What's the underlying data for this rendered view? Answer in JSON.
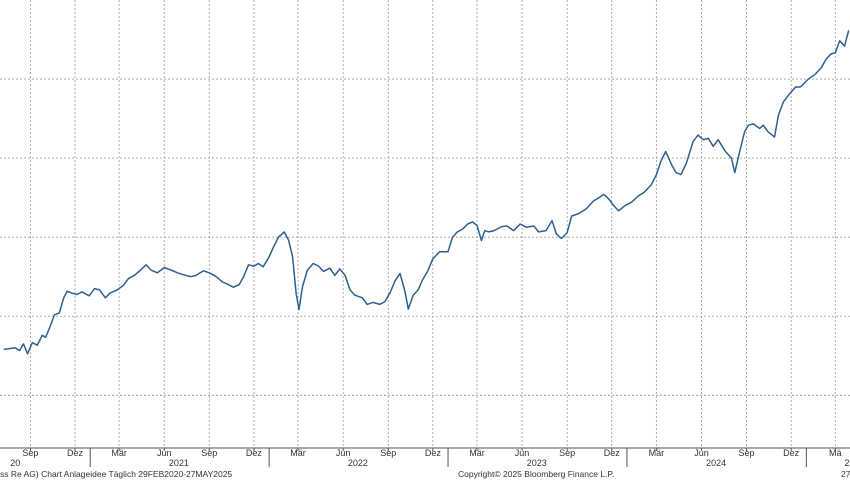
{
  "chart_data": {
    "type": "line",
    "title": "",
    "xlabel": "",
    "ylabel": "",
    "grid": true,
    "legend": "none",
    "line_color": "#2f5f8f",
    "grid_color": "#9a9a9a",
    "x_range": [
      "2020-07-01",
      "2025-03-31"
    ],
    "month_ticks": [
      {
        "date": "2020-09-01",
        "label": "Sep"
      },
      {
        "date": "2020-12-01",
        "label": "Dez"
      },
      {
        "date": "2021-03-01",
        "label": "Mär"
      },
      {
        "date": "2021-06-01",
        "label": "Jun"
      },
      {
        "date": "2021-09-01",
        "label": "Sep"
      },
      {
        "date": "2021-12-01",
        "label": "Dez"
      },
      {
        "date": "2022-03-01",
        "label": "Mär"
      },
      {
        "date": "2022-06-01",
        "label": "Jun"
      },
      {
        "date": "2022-09-01",
        "label": "Sep"
      },
      {
        "date": "2022-12-01",
        "label": "Dez"
      },
      {
        "date": "2023-03-01",
        "label": "Mär"
      },
      {
        "date": "2023-06-01",
        "label": "Jun"
      },
      {
        "date": "2023-09-01",
        "label": "Sep"
      },
      {
        "date": "2023-12-01",
        "label": "Dez"
      },
      {
        "date": "2024-03-01",
        "label": "Mär"
      },
      {
        "date": "2024-06-01",
        "label": "Jun"
      },
      {
        "date": "2024-09-01",
        "label": "Sep"
      },
      {
        "date": "2024-12-01",
        "label": "Dez"
      },
      {
        "date": "2025-03-01",
        "label": "Mä"
      }
    ],
    "year_labels": [
      {
        "date": "2020-08-01",
        "label": "20"
      },
      {
        "date": "2021-07-01",
        "label": "2021"
      },
      {
        "date": "2022-07-01",
        "label": "2022"
      },
      {
        "date": "2023-07-01",
        "label": "2023"
      },
      {
        "date": "2024-07-01",
        "label": "2024"
      },
      {
        "date": "2025-03-25",
        "label": "2"
      }
    ],
    "year_boundaries": [
      "2021-01-01",
      "2022-01-01",
      "2023-01-01",
      "2024-01-01",
      "2025-01-01"
    ],
    "series": [
      {
        "points": [
          [
            "2020-07-10",
            350
          ],
          [
            "2020-08-01",
            352
          ],
          [
            "2020-08-10",
            348
          ],
          [
            "2020-08-18",
            358
          ],
          [
            "2020-08-26",
            343
          ],
          [
            "2020-09-05",
            360
          ],
          [
            "2020-09-15",
            356
          ],
          [
            "2020-09-25",
            371
          ],
          [
            "2020-10-02",
            368
          ],
          [
            "2020-10-10",
            382
          ],
          [
            "2020-10-20",
            402
          ],
          [
            "2020-10-30",
            405
          ],
          [
            "2020-11-08",
            428
          ],
          [
            "2020-11-15",
            438
          ],
          [
            "2020-11-25",
            435
          ],
          [
            "2020-12-05",
            433
          ],
          [
            "2020-12-15",
            437
          ],
          [
            "2020-12-30",
            431
          ],
          [
            "2021-01-10",
            442
          ],
          [
            "2021-01-20",
            440
          ],
          [
            "2021-02-01",
            428
          ],
          [
            "2021-02-10",
            435
          ],
          [
            "2021-02-25",
            440
          ],
          [
            "2021-03-10",
            447
          ],
          [
            "2021-03-20",
            457
          ],
          [
            "2021-04-01",
            462
          ],
          [
            "2021-04-15",
            471
          ],
          [
            "2021-04-25",
            478
          ],
          [
            "2021-05-05",
            470
          ],
          [
            "2021-05-18",
            466
          ],
          [
            "2021-06-01",
            474
          ],
          [
            "2021-06-15",
            470
          ],
          [
            "2021-06-28",
            466
          ],
          [
            "2021-07-10",
            463
          ],
          [
            "2021-07-25",
            460
          ],
          [
            "2021-08-05",
            462
          ],
          [
            "2021-08-20",
            469
          ],
          [
            "2021-09-01",
            466
          ],
          [
            "2021-09-15",
            460
          ],
          [
            "2021-09-28",
            452
          ],
          [
            "2021-10-10",
            448
          ],
          [
            "2021-10-20",
            444
          ],
          [
            "2021-11-01",
            448
          ],
          [
            "2021-11-10",
            460
          ],
          [
            "2021-11-20",
            478
          ],
          [
            "2021-12-01",
            476
          ],
          [
            "2021-12-10",
            480
          ],
          [
            "2021-12-20",
            475
          ],
          [
            "2022-01-01",
            490
          ],
          [
            "2022-01-10",
            505
          ],
          [
            "2022-01-20",
            520
          ],
          [
            "2022-02-01",
            528
          ],
          [
            "2022-02-10",
            515
          ],
          [
            "2022-02-18",
            490
          ],
          [
            "2022-02-25",
            435
          ],
          [
            "2022-03-03",
            410
          ],
          [
            "2022-03-10",
            445
          ],
          [
            "2022-03-20",
            470
          ],
          [
            "2022-04-01",
            480
          ],
          [
            "2022-04-12",
            476
          ],
          [
            "2022-04-22",
            468
          ],
          [
            "2022-05-05",
            473
          ],
          [
            "2022-05-15",
            462
          ],
          [
            "2022-05-25",
            472
          ],
          [
            "2022-06-05",
            462
          ],
          [
            "2022-06-15",
            440
          ],
          [
            "2022-06-25",
            432
          ],
          [
            "2022-07-10",
            428
          ],
          [
            "2022-07-20",
            418
          ],
          [
            "2022-08-01",
            421
          ],
          [
            "2022-08-15",
            418
          ],
          [
            "2022-08-25",
            422
          ],
          [
            "2022-09-05",
            436
          ],
          [
            "2022-09-15",
            454
          ],
          [
            "2022-09-25",
            465
          ],
          [
            "2022-10-05",
            438
          ],
          [
            "2022-10-12",
            411
          ],
          [
            "2022-10-22",
            432
          ],
          [
            "2022-11-01",
            440
          ],
          [
            "2022-11-10",
            455
          ],
          [
            "2022-11-20",
            468
          ],
          [
            "2022-12-01",
            487
          ],
          [
            "2022-12-15",
            498
          ],
          [
            "2023-01-01",
            498
          ],
          [
            "2023-01-10",
            520
          ],
          [
            "2023-01-20",
            528
          ],
          [
            "2023-02-01",
            533
          ],
          [
            "2023-02-10",
            540
          ],
          [
            "2023-02-20",
            543
          ],
          [
            "2023-03-01",
            538
          ],
          [
            "2023-03-10",
            515
          ],
          [
            "2023-03-17",
            530
          ],
          [
            "2023-03-25",
            528
          ],
          [
            "2023-04-05",
            530
          ],
          [
            "2023-04-20",
            536
          ],
          [
            "2023-05-01",
            537
          ],
          [
            "2023-05-15",
            530
          ],
          [
            "2023-05-28",
            540
          ],
          [
            "2023-06-10",
            535
          ],
          [
            "2023-06-25",
            537
          ],
          [
            "2023-07-05",
            528
          ],
          [
            "2023-07-20",
            530
          ],
          [
            "2023-08-01",
            545
          ],
          [
            "2023-08-10",
            525
          ],
          [
            "2023-08-20",
            518
          ],
          [
            "2023-09-01",
            527
          ],
          [
            "2023-09-10",
            552
          ],
          [
            "2023-09-25",
            556
          ],
          [
            "2023-10-10",
            563
          ],
          [
            "2023-10-25",
            575
          ],
          [
            "2023-11-05",
            580
          ],
          [
            "2023-11-15",
            585
          ],
          [
            "2023-11-25",
            578
          ],
          [
            "2023-12-05",
            568
          ],
          [
            "2023-12-15",
            560
          ],
          [
            "2023-12-28",
            568
          ],
          [
            "2024-01-10",
            573
          ],
          [
            "2024-01-25",
            583
          ],
          [
            "2024-02-05",
            588
          ],
          [
            "2024-02-20",
            600
          ],
          [
            "2024-03-01",
            615
          ],
          [
            "2024-03-10",
            635
          ],
          [
            "2024-03-20",
            650
          ],
          [
            "2024-04-01",
            630
          ],
          [
            "2024-04-10",
            618
          ],
          [
            "2024-04-20",
            615
          ],
          [
            "2024-05-01",
            632
          ],
          [
            "2024-05-15",
            665
          ],
          [
            "2024-05-25",
            675
          ],
          [
            "2024-06-05",
            668
          ],
          [
            "2024-06-15",
            670
          ],
          [
            "2024-06-25",
            658
          ],
          [
            "2024-07-05",
            668
          ],
          [
            "2024-07-20",
            650
          ],
          [
            "2024-08-01",
            640
          ],
          [
            "2024-08-08",
            618
          ],
          [
            "2024-08-18",
            650
          ],
          [
            "2024-08-28",
            680
          ],
          [
            "2024-09-05",
            690
          ],
          [
            "2024-09-15",
            692
          ],
          [
            "2024-09-28",
            685
          ],
          [
            "2024-10-05",
            690
          ],
          [
            "2024-10-15",
            680
          ],
          [
            "2024-10-28",
            672
          ],
          [
            "2024-11-05",
            705
          ],
          [
            "2024-11-15",
            725
          ],
          [
            "2024-11-28",
            738
          ],
          [
            "2024-12-10",
            748
          ],
          [
            "2024-12-20",
            748
          ],
          [
            "2025-01-05",
            760
          ],
          [
            "2025-01-20",
            768
          ],
          [
            "2025-02-01",
            778
          ],
          [
            "2025-02-10",
            790
          ],
          [
            "2025-02-20",
            798
          ],
          [
            "2025-03-01",
            800
          ],
          [
            "2025-03-10",
            818
          ],
          [
            "2025-03-20",
            810
          ],
          [
            "2025-03-28",
            833
          ]
        ]
      }
    ],
    "ylim": [
      200,
      880
    ],
    "y_gridlines": [
      280,
      400,
      520,
      640,
      760
    ]
  },
  "footer": {
    "left": "ss Re AG) Chart Anlageidee  Täglich 29FEB2020-27MAY2025",
    "center": "Copyright© 2025 Bloomberg Finance L.P.",
    "right": "27"
  }
}
